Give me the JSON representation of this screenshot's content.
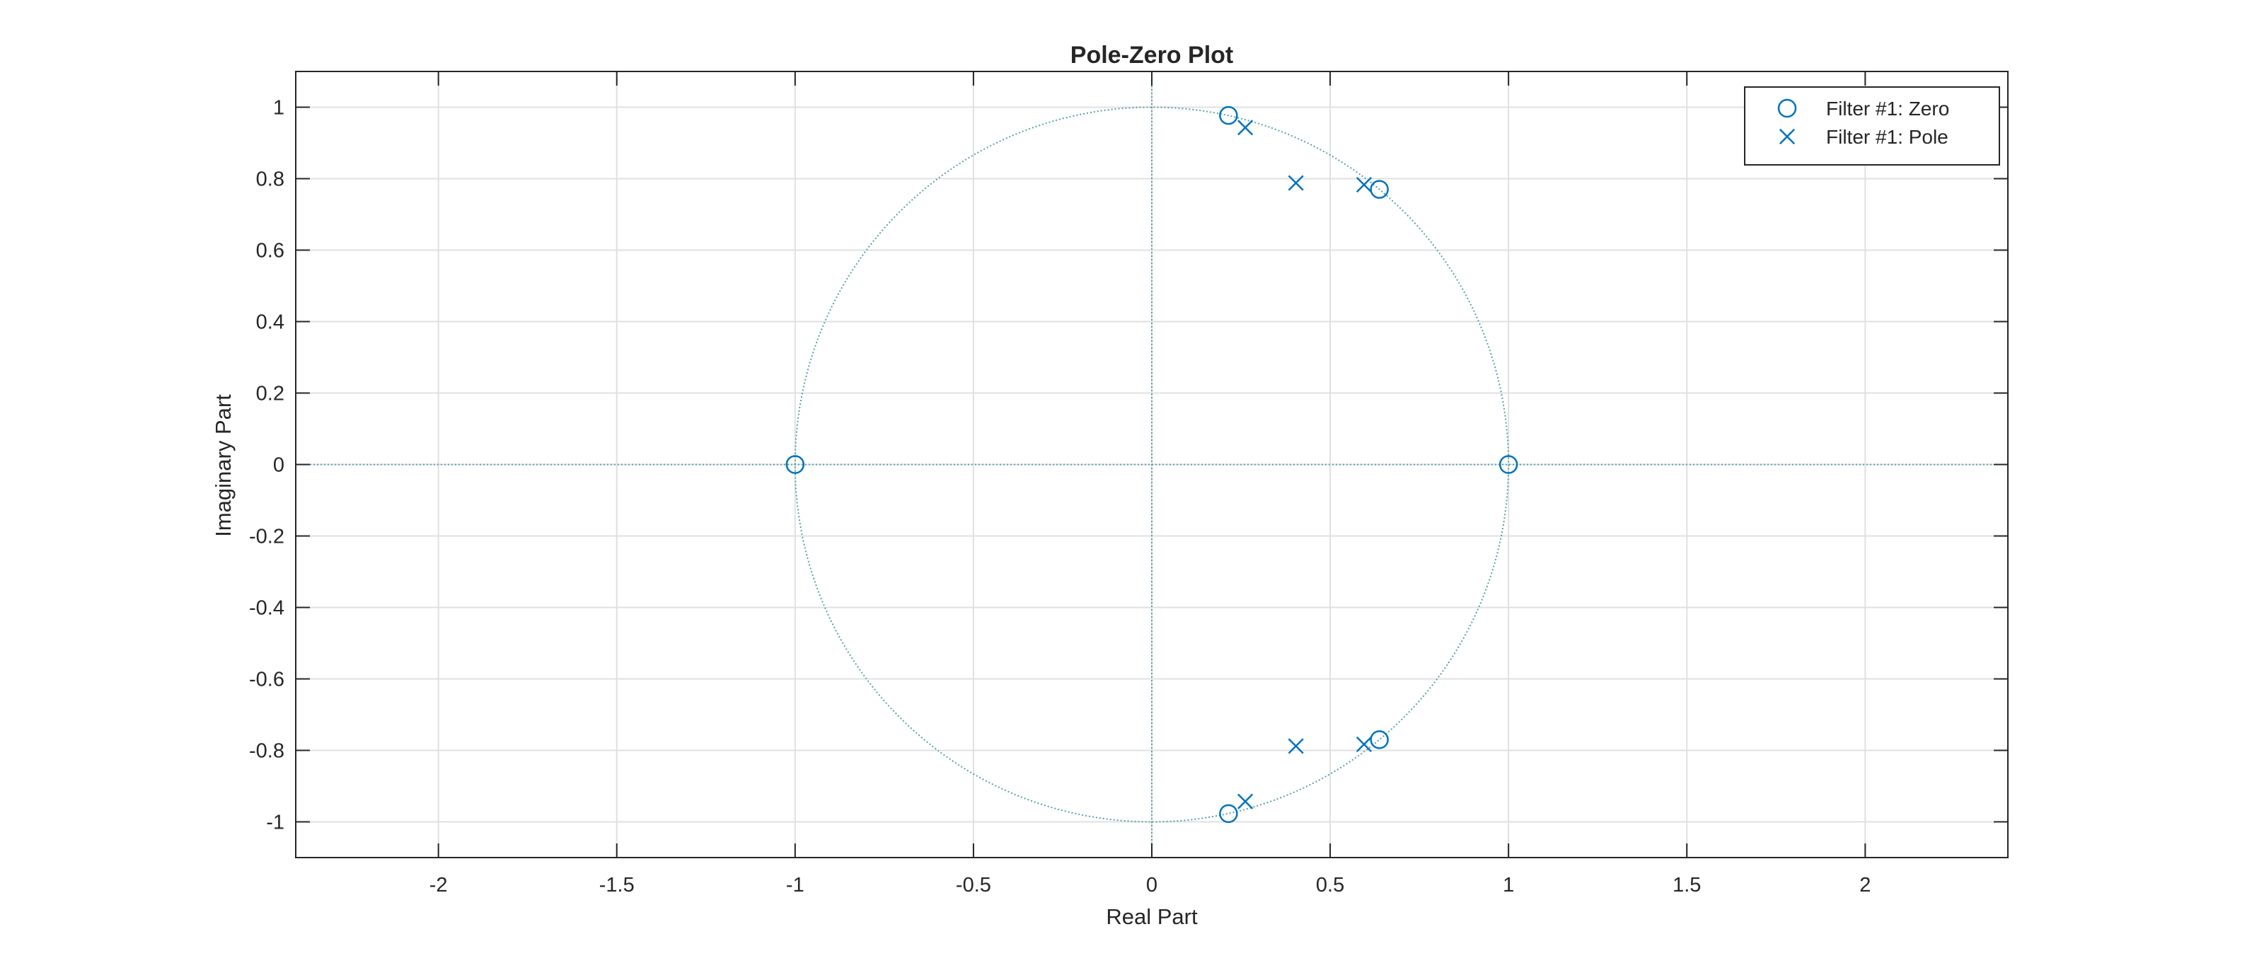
{
  "chart_data": {
    "type": "scatter",
    "title": "Pole-Zero Plot",
    "xlabel": "Real Part",
    "ylabel": "Imaginary Part",
    "xlim": [
      -2.4,
      2.4
    ],
    "ylim": [
      -1.1,
      1.1
    ],
    "xticks": [
      -2,
      -1.5,
      -1,
      -0.5,
      0,
      0.5,
      1,
      1.5,
      2
    ],
    "xtick_labels": [
      "-2",
      "-1.5",
      "-1",
      "-0.5",
      "0",
      "0.5",
      "1",
      "1.5",
      "2"
    ],
    "yticks": [
      -1,
      -0.8,
      -0.6,
      -0.4,
      -0.2,
      0,
      0.2,
      0.4,
      0.6,
      0.8,
      1
    ],
    "ytick_labels": [
      "-1",
      "-0.8",
      "-0.6",
      "-0.4",
      "-0.2",
      "0",
      "0.2",
      "0.4",
      "0.6",
      "0.8",
      "1"
    ],
    "grid": true,
    "unit_circle": true,
    "legend_position": "top-right",
    "series": [
      {
        "name": "Filter #1: Zero",
        "marker": "circle",
        "points": [
          [
            -1,
            0
          ],
          [
            1,
            0
          ],
          [
            0.215,
            0.977
          ],
          [
            0.215,
            -0.977
          ],
          [
            0.638,
            0.77
          ],
          [
            0.638,
            -0.77
          ]
        ]
      },
      {
        "name": "Filter #1: Pole",
        "marker": "x",
        "points": [
          [
            0.262,
            0.943
          ],
          [
            0.262,
            -0.943
          ],
          [
            0.404,
            0.788
          ],
          [
            0.404,
            -0.788
          ],
          [
            0.595,
            0.783
          ],
          [
            0.595,
            -0.783
          ]
        ]
      }
    ],
    "colors": {
      "marker": "#0072bd",
      "unit_circle": "#5b9fa8",
      "grid": "#e0e0e0",
      "axes": "#262626"
    }
  }
}
